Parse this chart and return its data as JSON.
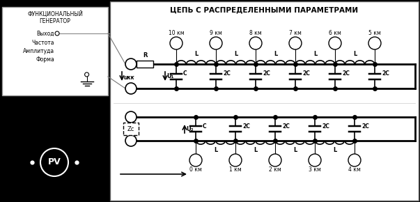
{
  "title": "ЦЕПЬ С РАСПРЕДЕЛЕННЫМИ ПАРАМЕТРАМИ",
  "bg_left": "#000000",
  "bg_right": "#ffffff",
  "generator_title_line1": "ФУНКЦИОНАЛЬНЫЙ",
  "generator_title_line2": "ГЕНЕРАТОР",
  "generator_items": [
    "Выход",
    "Частота",
    "Амплитуда",
    "Форма"
  ],
  "pv_label": "PV",
  "top_km_labels": [
    "10 км",
    "9 км",
    "8 км",
    "7 км",
    "6 км",
    "5 км"
  ],
  "bot_km_labels": [
    "0 км",
    "1 км",
    "2 км",
    "3 км",
    "4 км"
  ],
  "top_cap_labels": [
    "C",
    "2C",
    "2C",
    "2C",
    "2C",
    "2C"
  ],
  "bot_cap_labels": [
    "C",
    "2C",
    "2C",
    "2C",
    "2C"
  ],
  "ind_label": "L",
  "R_label": "R",
  "Zc_label": "Zc",
  "U1_label": "U₁",
  "U2_label": "U₂",
  "u_kk_label": "uкк"
}
